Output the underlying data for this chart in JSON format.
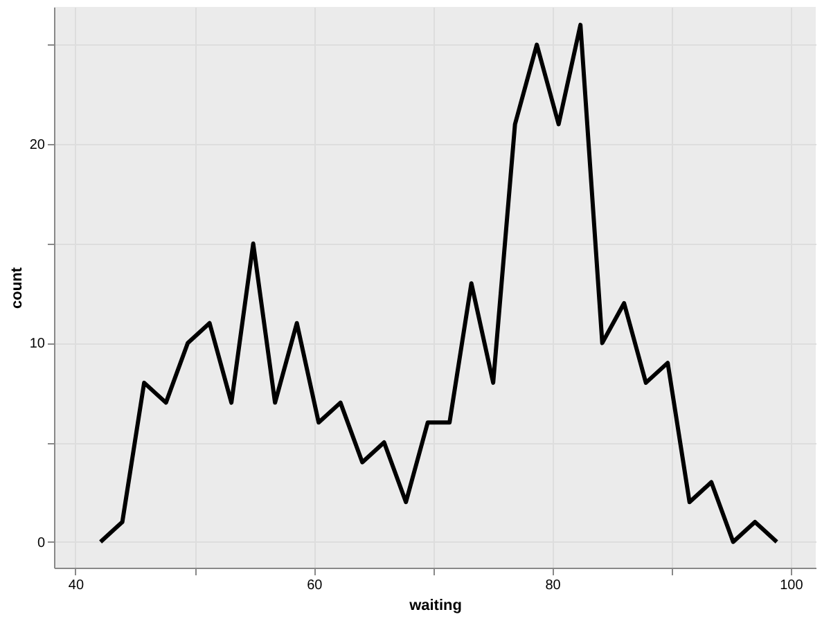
{
  "chart_data": {
    "type": "line",
    "xlabel": "waiting",
    "ylabel": "count",
    "x": [
      42.1,
      43.93,
      45.76,
      47.59,
      49.42,
      51.25,
      53.08,
      54.91,
      56.74,
      58.57,
      60.4,
      62.23,
      64.06,
      65.89,
      67.72,
      69.55,
      71.38,
      73.21,
      75.04,
      76.87,
      78.7,
      80.53,
      82.36,
      84.19,
      86.02,
      87.85,
      89.68,
      91.51,
      93.34,
      95.17,
      97.0,
      98.83
    ],
    "series": [
      {
        "color": "#000000",
        "values": [
          0,
          1,
          8,
          7,
          10,
          11,
          7,
          15,
          7,
          11,
          6,
          7,
          4,
          5,
          2,
          6,
          6,
          13,
          8,
          21,
          25,
          21,
          26,
          10,
          12,
          8,
          9,
          2,
          3,
          0,
          1,
          0
        ]
      }
    ],
    "xlim": [
      38.2,
      102.1
    ],
    "ylim": [
      -1.3,
      26.9
    ],
    "xticks": [
      40,
      {
        "value": 50,
        "label": null
      },
      60,
      {
        "value": 70,
        "label": null
      },
      80,
      {
        "value": 90,
        "label": null
      },
      100
    ],
    "yticks": [
      0,
      {
        "value": 5,
        "label": null
      },
      10,
      {
        "value": 15,
        "label": null
      },
      20,
      {
        "value": 25,
        "label": null
      }
    ],
    "grid": true,
    "marker": "none",
    "line_style": "solid"
  }
}
